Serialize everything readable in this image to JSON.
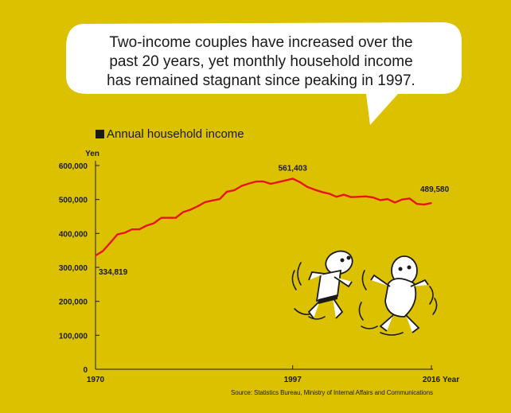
{
  "bubble": {
    "line1": "Two-income couples have increased over the",
    "line2": "past 20 years, yet monthly household income",
    "line3": "has remained stagnant since peaking in 1997."
  },
  "legend": {
    "label": "Annual household income"
  },
  "source": "Source: Statistics Bureau, Ministry of Internal Affairs and Communications",
  "colors": {
    "background": "#dcc100",
    "line": "#e8141a",
    "text": "#1a1a1a"
  },
  "chart_data": {
    "type": "line",
    "title": "Annual household income",
    "ylabel": "Yen",
    "xlabel": "Year",
    "ylim": [
      0,
      600000
    ],
    "xlim": [
      1970,
      2016
    ],
    "yticks": [
      0,
      100000,
      200000,
      300000,
      400000,
      500000,
      600000
    ],
    "ytick_labels": [
      "0",
      "100,000",
      "200,000",
      "300,000",
      "400,000",
      "500,000",
      "600,000"
    ],
    "xtick_labels": [
      "1970",
      "1997",
      "2016"
    ],
    "grid": false,
    "series": [
      {
        "name": "Annual household income",
        "x": [
          1970,
          1971,
          1972,
          1973,
          1974,
          1975,
          1976,
          1977,
          1978,
          1979,
          1980,
          1981,
          1982,
          1983,
          1984,
          1985,
          1986,
          1987,
          1988,
          1989,
          1990,
          1991,
          1992,
          1993,
          1994,
          1995,
          1996,
          1997,
          1998,
          1999,
          2000,
          2001,
          2002,
          2003,
          2004,
          2005,
          2006,
          2007,
          2008,
          2009,
          2010,
          2011,
          2012,
          2013,
          2014,
          2015,
          2016
        ],
        "values": [
          334819,
          348000,
          372000,
          397000,
          402000,
          412000,
          412000,
          423000,
          430000,
          446000,
          446000,
          446000,
          463000,
          470000,
          480000,
          492000,
          497000,
          501000,
          523000,
          527000,
          540000,
          547000,
          553000,
          553000,
          546000,
          551000,
          556000,
          561403,
          551000,
          537000,
          529000,
          522000,
          517000,
          508000,
          514000,
          507000,
          508000,
          509000,
          506000,
          498000,
          501000,
          491000,
          500000,
          503000,
          487000,
          485000,
          489580
        ]
      }
    ],
    "annotations": [
      {
        "x": 1970,
        "label": "334,819"
      },
      {
        "x": 1997,
        "label": "561,403"
      },
      {
        "x": 2016,
        "label": "489,580"
      }
    ]
  }
}
